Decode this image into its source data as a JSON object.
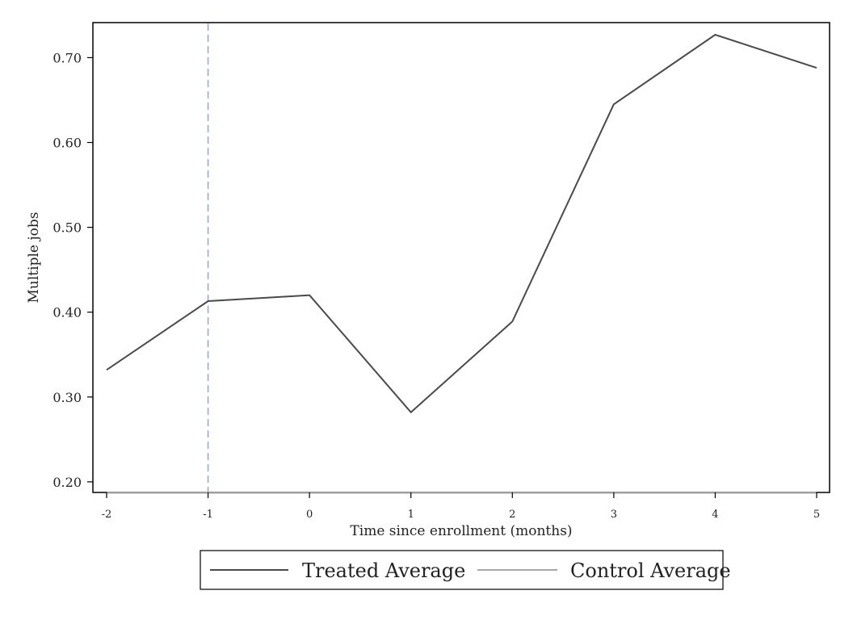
{
  "chart_data": {
    "type": "line",
    "title": "",
    "xlabel": "Time since enrollment (months)",
    "ylabel": "Multiple jobs",
    "x": [
      -2,
      -1,
      0,
      1,
      2,
      3,
      4,
      5
    ],
    "x_tick_labels": [
      "-2",
      "-1",
      "0",
      "1",
      "2",
      "3",
      "4",
      "5"
    ],
    "y_tick_values": [
      0.2,
      0.3,
      0.4,
      0.5,
      0.6,
      0.7
    ],
    "y_tick_labels": [
      "0.20",
      "0.30",
      "0.40",
      "0.50",
      "0.60",
      "0.70"
    ],
    "xlim": [
      -2,
      5
    ],
    "ylim": [
      0.1875,
      0.7375
    ],
    "vertical_reference_line": {
      "x": -1,
      "style": "dashed",
      "color": "#8fa8c8"
    },
    "grid": false,
    "legend_position": "bottom",
    "series": [
      {
        "name": "Treated Average",
        "color": "#4a4a4a",
        "values": [
          0.332,
          0.413,
          0.42,
          0.282,
          0.389,
          0.645,
          0.727,
          0.688
        ]
      },
      {
        "name": "Control Average",
        "color": "#a6a6a6",
        "values": [
          0.187,
          0.187,
          0.187,
          0.187,
          0.187,
          0.187,
          0.187,
          0.187
        ]
      }
    ]
  }
}
